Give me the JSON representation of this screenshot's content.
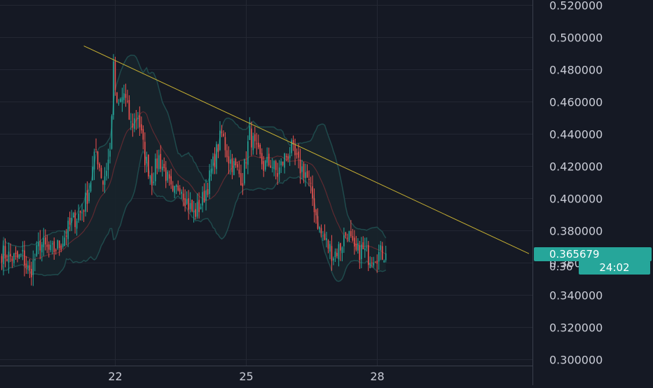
{
  "chart_data": {
    "type": "candlestick",
    "y_axis": {
      "ticks": [
        "0.300000",
        "0.320000",
        "0.340000",
        "0.360000",
        "0.380000",
        "0.400000",
        "0.420000",
        "0.440000",
        "0.460000",
        "0.480000",
        "0.500000",
        "0.520000"
      ],
      "ylim": [
        0.296,
        0.523
      ]
    },
    "x_axis": {
      "ticks": [
        {
          "label": "22",
          "index": 65
        },
        {
          "label": "25",
          "index": 140
        },
        {
          "label": "28",
          "index": 215
        }
      ],
      "xlim": [
        -1,
        304
      ]
    },
    "last_price_label": "0.365679",
    "partial_price_label": "0.36",
    "countdown_label": "24:02",
    "colors": {
      "background": "#151924",
      "grid": "#232733",
      "up": "#26a69a",
      "down": "#ef5350",
      "bollinger_band": "#1f4a4c",
      "bollinger_fill": "#17232b",
      "middle_band": "#5e2a31",
      "trendline": "#c7b032",
      "axis_text": "#c9ccd6",
      "price_label_bg": "#26a69a"
    },
    "trendline": {
      "start": {
        "index": 47,
        "price": 0.4945
      },
      "end": {
        "index": 302,
        "price": 0.3655
      }
    },
    "anchors": [
      {
        "i": 0,
        "c": 0.366
      },
      {
        "i": 8,
        "c": 0.362
      },
      {
        "i": 12,
        "c": 0.364
      },
      {
        "i": 16,
        "c": 0.353
      },
      {
        "i": 22,
        "c": 0.372
      },
      {
        "i": 28,
        "c": 0.366
      },
      {
        "i": 34,
        "c": 0.372
      },
      {
        "i": 40,
        "c": 0.385
      },
      {
        "i": 46,
        "c": 0.392
      },
      {
        "i": 50,
        "c": 0.405
      },
      {
        "i": 54,
        "c": 0.43
      },
      {
        "i": 58,
        "c": 0.41
      },
      {
        "i": 62,
        "c": 0.428
      },
      {
        "i": 64,
        "c": 0.48
      },
      {
        "i": 66,
        "c": 0.455
      },
      {
        "i": 70,
        "c": 0.465
      },
      {
        "i": 74,
        "c": 0.445
      },
      {
        "i": 78,
        "c": 0.452
      },
      {
        "i": 82,
        "c": 0.425
      },
      {
        "i": 86,
        "c": 0.412
      },
      {
        "i": 90,
        "c": 0.425
      },
      {
        "i": 94,
        "c": 0.415
      },
      {
        "i": 98,
        "c": 0.4
      },
      {
        "i": 102,
        "c": 0.41
      },
      {
        "i": 106,
        "c": 0.398
      },
      {
        "i": 110,
        "c": 0.39
      },
      {
        "i": 114,
        "c": 0.396
      },
      {
        "i": 118,
        "c": 0.408
      },
      {
        "i": 122,
        "c": 0.425
      },
      {
        "i": 126,
        "c": 0.44
      },
      {
        "i": 130,
        "c": 0.425
      },
      {
        "i": 134,
        "c": 0.418
      },
      {
        "i": 138,
        "c": 0.412
      },
      {
        "i": 142,
        "c": 0.44
      },
      {
        "i": 146,
        "c": 0.428
      },
      {
        "i": 150,
        "c": 0.42
      },
      {
        "i": 154,
        "c": 0.422
      },
      {
        "i": 158,
        "c": 0.415
      },
      {
        "i": 162,
        "c": 0.425
      },
      {
        "i": 166,
        "c": 0.43
      },
      {
        "i": 170,
        "c": 0.42
      },
      {
        "i": 174,
        "c": 0.416
      },
      {
        "i": 178,
        "c": 0.4
      },
      {
        "i": 182,
        "c": 0.38
      },
      {
        "i": 186,
        "c": 0.372
      },
      {
        "i": 190,
        "c": 0.365
      },
      {
        "i": 194,
        "c": 0.37
      },
      {
        "i": 198,
        "c": 0.38
      },
      {
        "i": 202,
        "c": 0.365
      },
      {
        "i": 206,
        "c": 0.368
      },
      {
        "i": 210,
        "c": 0.364
      },
      {
        "i": 214,
        "c": 0.365
      },
      {
        "i": 220,
        "c": 0.365679
      }
    ],
    "seed": 7
  }
}
